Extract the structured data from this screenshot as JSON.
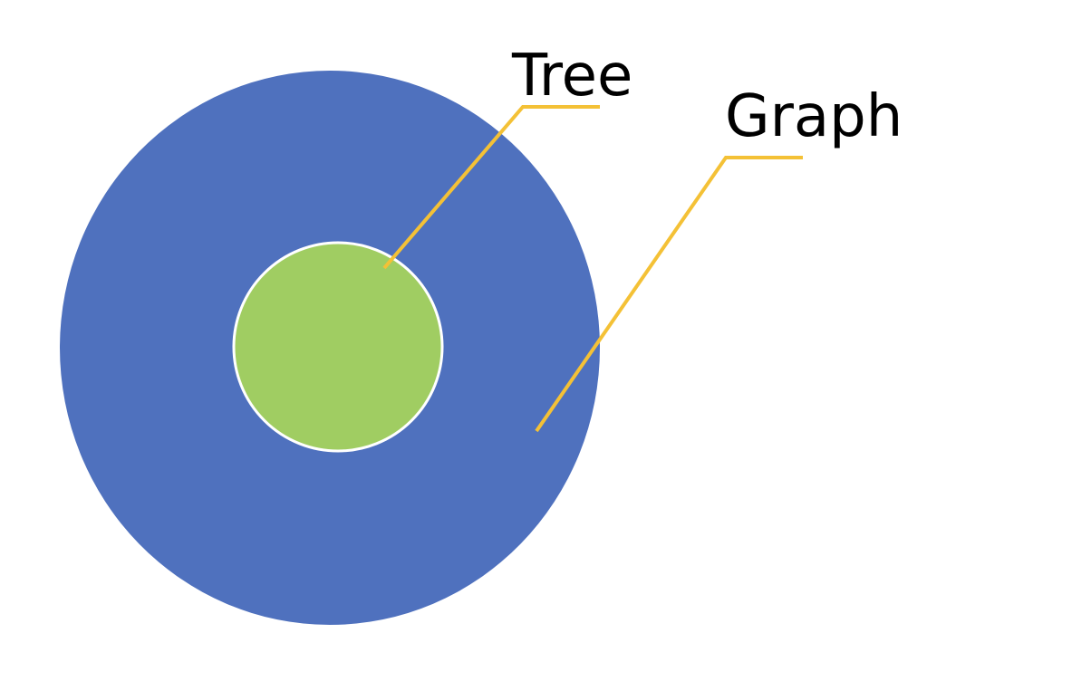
{
  "labels": {
    "tree": "Tree",
    "graph": "Graph"
  },
  "colors": {
    "outer_circle": "#4F71BE",
    "inner_circle": "#A0CD62",
    "inner_border": "#FFFFFF",
    "callout_line": "#F4C136",
    "text": "#000000",
    "background": "#FFFFFF"
  }
}
